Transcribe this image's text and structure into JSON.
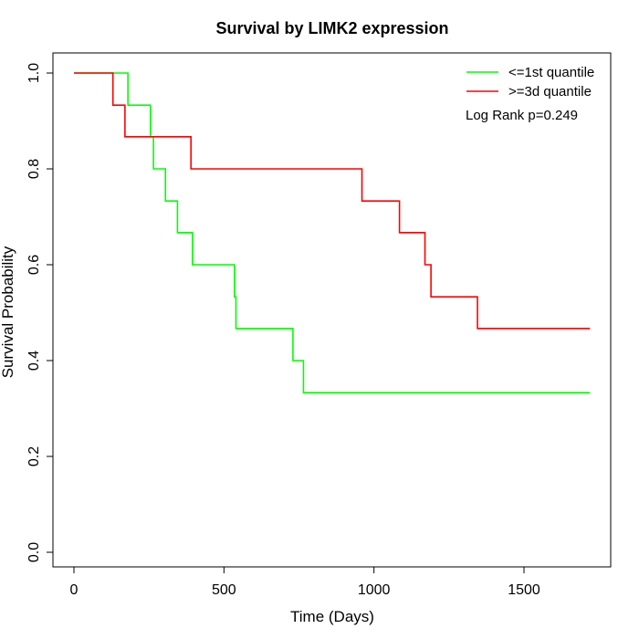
{
  "chart_data": {
    "type": "line",
    "title": "Survival by LIMK2 expression",
    "xlabel": "Time (Days)",
    "ylabel": "Survival Probability",
    "xlim": [
      0,
      1720
    ],
    "ylim": [
      0,
      1.0
    ],
    "x_ticks": [
      0,
      500,
      1000,
      1500
    ],
    "y_ticks": [
      0.0,
      0.2,
      0.4,
      0.6,
      0.8,
      1.0
    ],
    "x_tick_labels": [
      "0",
      "500",
      "1000",
      "1500"
    ],
    "y_tick_labels": [
      "0.0",
      "0.2",
      "0.4",
      "0.6",
      "0.8",
      "1.0"
    ],
    "grid": false,
    "legend_position": "top-right",
    "annotation": "Log Rank p=0.249",
    "series": [
      {
        "name": "<=1st quantile",
        "color": "#00ff00",
        "step": true,
        "x": [
          0,
          180,
          255,
          265,
          305,
          345,
          395,
          535,
          540,
          730,
          765,
          1720
        ],
        "y": [
          1.0,
          0.933,
          0.867,
          0.8,
          0.733,
          0.667,
          0.6,
          0.533,
          0.467,
          0.4,
          0.333,
          0.333
        ]
      },
      {
        "name": ">=3d quantile",
        "color": "#ff0000",
        "step": true,
        "x": [
          0,
          130,
          170,
          390,
          960,
          1085,
          1170,
          1190,
          1345,
          1720
        ],
        "y": [
          1.0,
          0.933,
          0.867,
          0.8,
          0.733,
          0.667,
          0.6,
          0.533,
          0.467,
          0.467
        ]
      }
    ]
  }
}
